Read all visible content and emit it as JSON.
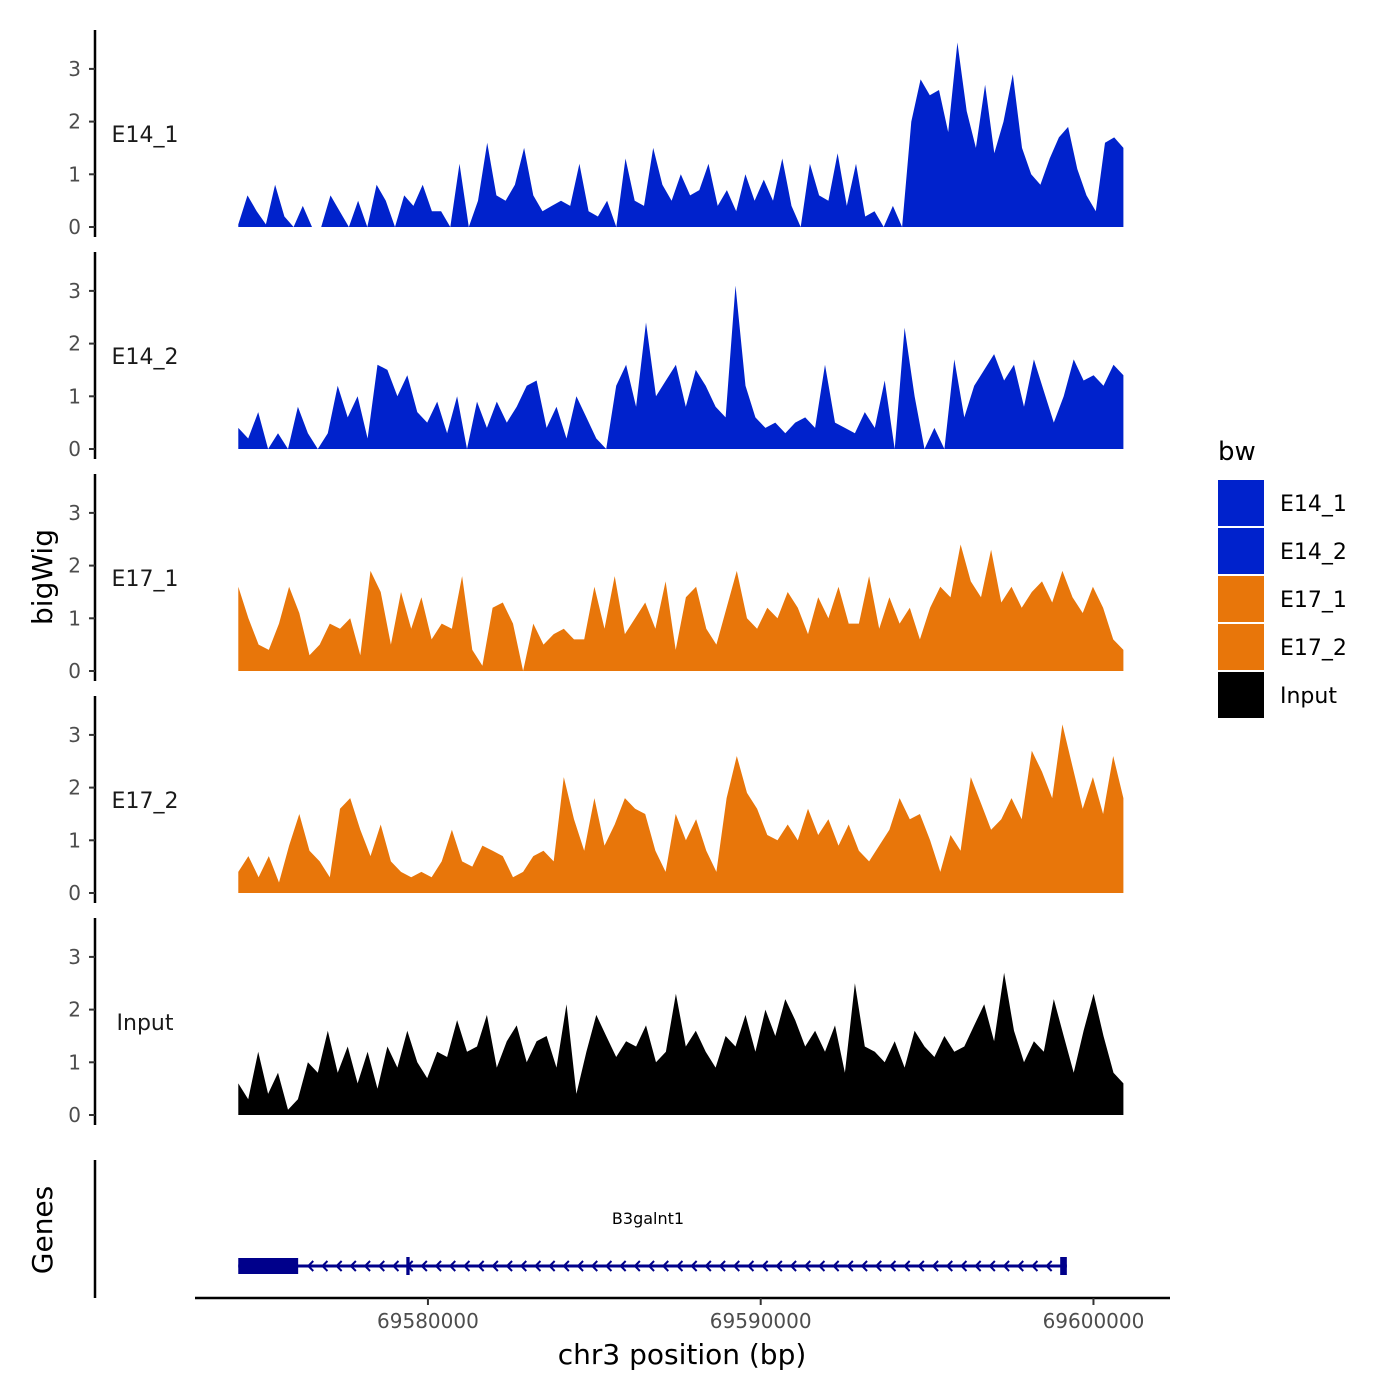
{
  "chart_data": {
    "type": "area",
    "ylabel": "bigWig",
    "xlabel": "chr3 position (bp)",
    "ylim": [
      0,
      3.6
    ],
    "xlim": [
      69573000,
      69602300
    ],
    "data_range": [
      69574300,
      69600900
    ],
    "y_ticks": [
      "0",
      "1",
      "2",
      "3"
    ],
    "x_ticks": [
      {
        "value": 69580000,
        "label": "69580000"
      },
      {
        "value": 69590000,
        "label": "69590000"
      },
      {
        "value": 69600000,
        "label": "69600000"
      }
    ],
    "colors": {
      "E14": "#0022CC",
      "E17": "#E8760A",
      "Input": "#000000",
      "gene": "#00008B"
    },
    "tracks": [
      {
        "name": "E14_1",
        "label": "E14_1",
        "color": "#0022CC",
        "values": [
          0.05,
          0.6,
          0.3,
          0.05,
          0.8,
          0.2,
          0,
          0.4,
          0,
          0,
          0.6,
          0.3,
          0,
          0.5,
          0,
          0.8,
          0.5,
          0,
          0.6,
          0.4,
          0.8,
          0.3,
          0.3,
          0,
          1.2,
          0,
          0.5,
          1.6,
          0.6,
          0.5,
          0.8,
          1.5,
          0.6,
          0.3,
          0.4,
          0.5,
          0.4,
          1.2,
          0.3,
          0.2,
          0.5,
          0,
          1.3,
          0.5,
          0.4,
          1.5,
          0.8,
          0.5,
          1.0,
          0.6,
          0.7,
          1.2,
          0.4,
          0.7,
          0.3,
          1.0,
          0.5,
          0.9,
          0.5,
          1.3,
          0.4,
          0,
          1.2,
          0.6,
          0.5,
          1.4,
          0.4,
          1.2,
          0.2,
          0.3,
          0,
          0.4,
          0,
          2.0,
          2.8,
          2.5,
          2.6,
          1.8,
          3.5,
          2.2,
          1.5,
          2.7,
          1.4,
          2.0,
          2.9,
          1.5,
          1.0,
          0.8,
          1.3,
          1.7,
          1.9,
          1.1,
          0.6,
          0.3,
          1.6,
          1.7,
          1.5
        ]
      },
      {
        "name": "E14_2",
        "label": "E14_2",
        "color": "#0022CC",
        "values": [
          0.4,
          0.2,
          0.7,
          0,
          0.3,
          0,
          0.8,
          0.3,
          0,
          0.3,
          1.2,
          0.6,
          1.0,
          0.2,
          1.6,
          1.5,
          1.0,
          1.4,
          0.7,
          0.5,
          0.9,
          0.3,
          1.0,
          0,
          0.9,
          0.4,
          0.9,
          0.5,
          0.8,
          1.2,
          1.3,
          0.4,
          0.8,
          0.2,
          1.0,
          0.6,
          0.2,
          0,
          1.2,
          1.6,
          0.8,
          2.4,
          1.0,
          1.3,
          1.6,
          0.8,
          1.5,
          1.2,
          0.8,
          0.6,
          3.1,
          1.2,
          0.6,
          0.4,
          0.5,
          0.3,
          0.5,
          0.6,
          0.4,
          1.6,
          0.5,
          0.4,
          0.3,
          0.7,
          0.4,
          1.3,
          0,
          2.3,
          1.0,
          0,
          0.4,
          0,
          1.7,
          0.6,
          1.2,
          1.5,
          1.8,
          1.3,
          1.6,
          0.8,
          1.7,
          1.1,
          0.5,
          1.0,
          1.7,
          1.3,
          1.4,
          1.2,
          1.6,
          1.4
        ]
      },
      {
        "name": "E17_1",
        "label": "E17_1",
        "color": "#E8760A",
        "values": [
          1.6,
          1.0,
          0.5,
          0.4,
          0.9,
          1.6,
          1.1,
          0.3,
          0.5,
          0.9,
          0.8,
          1.0,
          0.3,
          1.9,
          1.5,
          0.5,
          1.5,
          0.8,
          1.4,
          0.6,
          0.9,
          0.8,
          1.8,
          0.4,
          0.1,
          1.2,
          1.3,
          0.9,
          0,
          0.9,
          0.5,
          0.7,
          0.8,
          0.6,
          0.6,
          1.6,
          0.8,
          1.8,
          0.7,
          1.0,
          1.3,
          0.8,
          1.7,
          0.4,
          1.4,
          1.6,
          0.8,
          0.5,
          1.2,
          1.9,
          1.0,
          0.8,
          1.2,
          1.0,
          1.5,
          1.2,
          0.7,
          1.4,
          1.0,
          1.6,
          0.9,
          0.9,
          1.8,
          0.8,
          1.4,
          0.9,
          1.2,
          0.6,
          1.2,
          1.6,
          1.4,
          2.4,
          1.7,
          1.4,
          2.3,
          1.3,
          1.6,
          1.2,
          1.5,
          1.7,
          1.3,
          1.9,
          1.4,
          1.1,
          1.6,
          1.2,
          0.6,
          0.4
        ]
      },
      {
        "name": "E17_2",
        "label": "E17_2",
        "color": "#E8760A",
        "values": [
          0.4,
          0.7,
          0.3,
          0.7,
          0.2,
          0.9,
          1.5,
          0.8,
          0.6,
          0.3,
          1.6,
          1.8,
          1.2,
          0.7,
          1.3,
          0.6,
          0.4,
          0.3,
          0.4,
          0.3,
          0.6,
          1.2,
          0.6,
          0.5,
          0.9,
          0.8,
          0.7,
          0.3,
          0.4,
          0.7,
          0.8,
          0.6,
          2.2,
          1.4,
          0.8,
          1.8,
          0.9,
          1.3,
          1.8,
          1.6,
          1.5,
          0.8,
          0.4,
          1.5,
          1.0,
          1.4,
          0.8,
          0.4,
          1.8,
          2.6,
          1.9,
          1.6,
          1.1,
          1.0,
          1.3,
          1.0,
          1.6,
          1.1,
          1.4,
          0.9,
          1.3,
          0.8,
          0.6,
          0.9,
          1.2,
          1.8,
          1.4,
          1.5,
          1.0,
          0.4,
          1.1,
          0.8,
          2.2,
          1.7,
          1.2,
          1.4,
          1.8,
          1.4,
          2.7,
          2.3,
          1.8,
          3.2,
          2.4,
          1.6,
          2.2,
          1.5,
          2.6,
          1.8
        ]
      },
      {
        "name": "Input",
        "label": "Input",
        "color": "#000000",
        "values": [
          0.6,
          0.3,
          1.2,
          0.4,
          0.8,
          0.1,
          0.3,
          1.0,
          0.8,
          1.6,
          0.8,
          1.3,
          0.6,
          1.2,
          0.5,
          1.3,
          0.9,
          1.6,
          1.0,
          0.7,
          1.2,
          1.1,
          1.8,
          1.2,
          1.3,
          1.9,
          0.9,
          1.4,
          1.7,
          1.0,
          1.4,
          1.5,
          0.9,
          2.1,
          0.4,
          1.2,
          1.9,
          1.5,
          1.1,
          1.4,
          1.3,
          1.7,
          1.0,
          1.2,
          2.3,
          1.3,
          1.6,
          1.2,
          0.9,
          1.5,
          1.3,
          1.9,
          1.2,
          2.0,
          1.5,
          2.2,
          1.8,
          1.3,
          1.6,
          1.2,
          1.7,
          0.8,
          2.5,
          1.3,
          1.2,
          1.0,
          1.4,
          0.9,
          1.6,
          1.3,
          1.1,
          1.5,
          1.2,
          1.3,
          1.7,
          2.1,
          1.4,
          2.7,
          1.6,
          1.0,
          1.4,
          1.2,
          2.2,
          1.5,
          0.8,
          1.6,
          2.3,
          1.5,
          0.8,
          0.6
        ]
      }
    ],
    "legend": {
      "title": "bw",
      "position": "right",
      "entries": [
        {
          "label": "E14_1",
          "color": "#0022CC"
        },
        {
          "label": "E14_2",
          "color": "#0022CC"
        },
        {
          "label": "E17_1",
          "color": "#E8760A"
        },
        {
          "label": "E17_2",
          "color": "#E8760A"
        },
        {
          "label": "Input",
          "color": "#000000"
        }
      ]
    },
    "genes_track": {
      "label": "Genes",
      "gene_name": "B3galnt1",
      "start": 69574300,
      "end": 69599200,
      "exons": [
        [
          69574300,
          69576100
        ],
        [
          69579350,
          69579450
        ],
        [
          69599000,
          69599200
        ]
      ],
      "strand": "-"
    }
  }
}
